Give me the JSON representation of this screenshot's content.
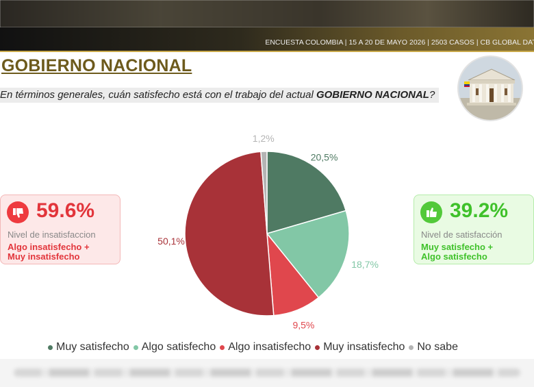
{
  "header": {
    "info": "ENCUESTA COLOMBIA | 15 A 20 DE MAYO 2026 | 2503 CASOS | CB GLOBAL DATA"
  },
  "slide": {
    "title": "GOBIERNO NACIONAL",
    "question_prefix": "En términos generales, cuán satisfecho está con el trabajo del actual ",
    "question_emphasis": "GOBIERNO NACIONAL",
    "question_suffix": "?"
  },
  "cards": {
    "dissatisfaction": {
      "percent": "59.6%",
      "label": "Nivel de insatisfaccion",
      "desc_line1": "Algo insatisfecho +",
      "desc_line2": "Muy insatisfecho",
      "icon": "thumbs-down-icon",
      "color": "#ee3a3f"
    },
    "satisfaction": {
      "percent": "39.2%",
      "label": "Nivel de satisfacción",
      "desc_line1": "Muy satisfecho +",
      "desc_line2": "Algo satisfecho",
      "icon": "thumbs-up-icon",
      "color": "#52c93a"
    }
  },
  "chart_data": {
    "type": "pie",
    "title": "",
    "categories": [
      "Muy satisfecho",
      "Algo satisfecho",
      "Algo insatisfecho",
      "Muy insatisfecho",
      "No sabe"
    ],
    "values": [
      20.5,
      18.7,
      9.5,
      50.1,
      1.2
    ],
    "value_labels": [
      "20,5%",
      "18,7%",
      "9,5%",
      "50,1%",
      "1,2%"
    ],
    "colors": [
      "#4f7a63",
      "#82c7a6",
      "#e0474d",
      "#a83238",
      "#b4b4b4"
    ],
    "legend_position": "bottom",
    "start_angle_deg": 0,
    "direction": "clockwise"
  }
}
